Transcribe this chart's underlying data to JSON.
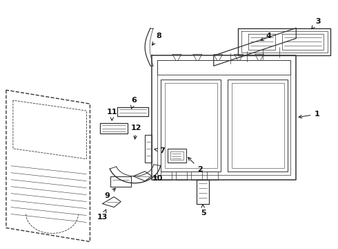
{
  "background_color": "#ffffff",
  "line_color": "#333333",
  "figsize": [
    4.9,
    3.6
  ],
  "dpi": 100,
  "lw_main": 0.9,
  "lw_thin": 0.5,
  "lw_dashed": 0.6
}
